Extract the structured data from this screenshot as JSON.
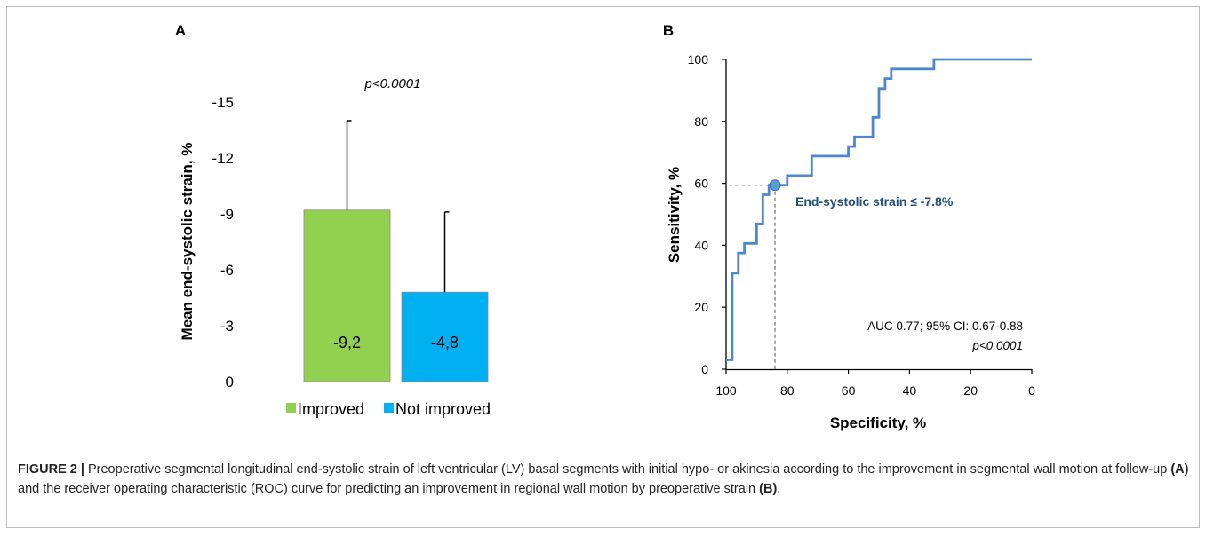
{
  "chart_data": [
    {
      "type": "bar",
      "panel_label": "A",
      "categories": [
        "Improved",
        "Not improved"
      ],
      "values": [
        -9.2,
        -4.8
      ],
      "value_labels": [
        "-9,2",
        "-4,8"
      ],
      "error_bars_upper": [
        -14.0,
        -9.1
      ],
      "colors": [
        "#92d050",
        "#00b0f0"
      ],
      "ylabel": "Mean end-systolic strain, %",
      "yticks": [
        "-15",
        "-12",
        "-9",
        "-6",
        "-3",
        "0"
      ],
      "ylim": [
        0,
        -15
      ],
      "y_axis_inverted": true,
      "legend": [
        "Improved",
        "Not improved"
      ],
      "legend_position": "bottom",
      "annotation": "p<0.0001",
      "grid": false
    },
    {
      "type": "line",
      "panel_label": "B",
      "xlabel": "Specificity, %",
      "ylabel": "Sensitivity, %",
      "xticks": [
        "100",
        "80",
        "60",
        "40",
        "20",
        "0"
      ],
      "yticks": [
        "0",
        "20",
        "40",
        "60",
        "80",
        "100"
      ],
      "xlim": [
        100,
        0
      ],
      "ylim": [
        0,
        100
      ],
      "x_axis_reversed": true,
      "series": [
        {
          "color": "#4f86d0",
          "x": [
            100,
            98,
            98,
            96,
            96,
            94,
            94,
            90,
            90,
            88,
            88,
            86,
            86,
            84,
            84,
            80,
            80,
            72,
            72,
            68,
            68,
            60,
            60,
            58,
            58,
            56,
            56,
            52,
            52,
            50,
            50,
            48,
            48,
            46,
            46,
            44,
            44,
            32,
            32,
            0
          ],
          "y": [
            3,
            3,
            31,
            31,
            37.5,
            37.5,
            40.6,
            40.6,
            46.9,
            46.9,
            56.3,
            56.3,
            59.4,
            59.4,
            59.4,
            59.4,
            62.5,
            62.5,
            68.8,
            68.8,
            68.8,
            68.8,
            71.9,
            71.9,
            75,
            75,
            75,
            75,
            81.3,
            81.3,
            90.6,
            90.6,
            93.8,
            93.8,
            96.9,
            96.9,
            96.9,
            96.9,
            100,
            100
          ]
        }
      ],
      "cutoff_point": {
        "x": 84,
        "y": 59.4
      },
      "cutoff_label": "End-systolic  strain ≤ -7.8%",
      "auc_text": "AUC 0.77; 95% CI: 0.67-0.88",
      "p_text": "p<0.0001",
      "grid": false
    }
  ],
  "caption": {
    "figure_label": "FIGURE 2 |",
    "text_1": " Preoperative segmental longitudinal end-systolic strain of left ventricular (LV) basal segments with initial hypo- or akinesia according to the improvement in segmental wall motion at follow-up ",
    "ref_a": "(A)",
    "text_2": " and the receiver operating characteristic (ROC) curve for predicting an improvement in regional wall motion by preoperative strain ",
    "ref_b": "(B)",
    "text_3": "."
  }
}
